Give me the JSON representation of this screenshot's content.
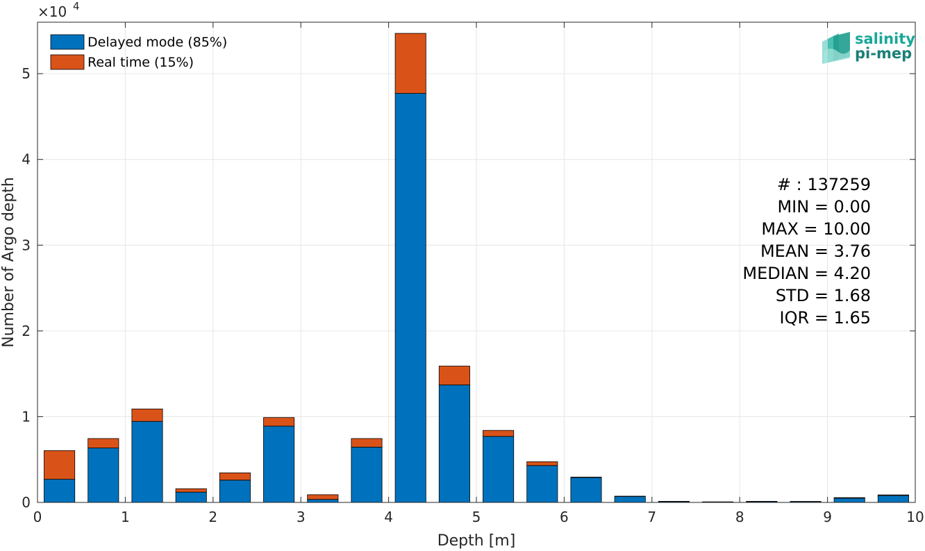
{
  "chart_data": {
    "type": "bar",
    "stacked": true,
    "xlabel": "Depth [m]",
    "ylabel": "Number of Argo depth",
    "y_exponent_label": "×10",
    "y_exponent_power": "4",
    "xlim": [
      0,
      10
    ],
    "ylim": [
      0,
      56000
    ],
    "xticks": [
      0,
      1,
      2,
      3,
      4,
      5,
      6,
      7,
      8,
      9,
      10
    ],
    "yticks": [
      0,
      10000,
      20000,
      30000,
      40000,
      50000
    ],
    "ytick_labels": [
      "0",
      "1",
      "2",
      "3",
      "4",
      "5"
    ],
    "grid": true,
    "legend_position": "top-left",
    "bin_width": 0.5,
    "bar_width_ratio": 0.7,
    "x": [
      0.25,
      0.75,
      1.25,
      1.75,
      2.25,
      2.75,
      3.25,
      3.75,
      4.25,
      4.75,
      5.25,
      5.75,
      6.25,
      6.75,
      7.25,
      7.75,
      8.25,
      8.75,
      9.25,
      9.75
    ],
    "series": [
      {
        "name": "Delayed mode (85%)",
        "color": "#0072bd",
        "values": [
          2700,
          6350,
          9450,
          1200,
          2600,
          8900,
          350,
          6450,
          47700,
          13700,
          7700,
          4300,
          2900,
          700,
          100,
          50,
          100,
          100,
          500,
          800
        ]
      },
      {
        "name": "Real time (15%)",
        "color": "#d95319",
        "values": [
          3350,
          1100,
          1450,
          400,
          850,
          1000,
          550,
          1000,
          7000,
          2200,
          700,
          450,
          50,
          30,
          30,
          20,
          30,
          20,
          60,
          80
        ]
      }
    ],
    "annotations": [
      "# : 137259",
      "MIN = 0.00",
      "MAX =  10.00",
      "MEAN = 3.76",
      "MEDIAN = 4.20",
      "STD = 1.68",
      "IQR = 1.65"
    ]
  },
  "logo": {
    "line1": "salinity",
    "line2": "pi-mep",
    "color": "#19a79a"
  }
}
